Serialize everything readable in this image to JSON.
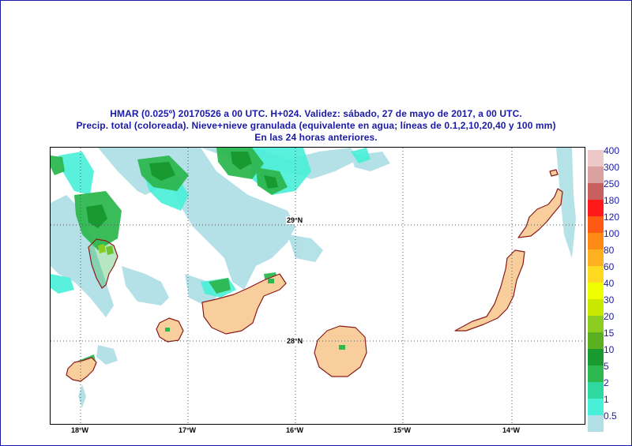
{
  "header": {
    "line1": "HMAR (0.025º) 20170526  a 00 UTC.  H+024. Validez: sábado, 27 de mayo de 2017,  a  00 UTC.",
    "line2": "Precip. total (coloreada). Nieve+nieve granulada (equivalente en agua; líneas de 0.1,2,10,20,40 y 100 mm)",
    "line3": "En las 24 horas anteriores."
  },
  "map": {
    "lat_labels": [
      "29°N",
      "28°N"
    ],
    "lon_labels": [
      "18°W",
      "17°W",
      "16°W",
      "15°W",
      "14°W"
    ],
    "colors": {
      "land": "#f8cf9c",
      "coast": "#8b1a1a",
      "grid": "#555555"
    }
  },
  "legend": {
    "items": [
      {
        "label": "400",
        "color": "#ecc8c8"
      },
      {
        "label": "300",
        "color": "#dba0a0"
      },
      {
        "label": "250",
        "color": "#c86060"
      },
      {
        "label": "180",
        "color": "#ff1a1a"
      },
      {
        "label": "120",
        "color": "#ff5a14"
      },
      {
        "label": "100",
        "color": "#ff8a14"
      },
      {
        "label": "80",
        "color": "#ffb020"
      },
      {
        "label": "60",
        "color": "#ffd820"
      },
      {
        "label": "40",
        "color": "#f0ff00"
      },
      {
        "label": "30",
        "color": "#c8e800"
      },
      {
        "label": "20",
        "color": "#8ccc20"
      },
      {
        "label": "15",
        "color": "#5ab020"
      },
      {
        "label": "10",
        "color": "#189a30"
      },
      {
        "label": "5",
        "color": "#2eb850"
      },
      {
        "label": "2",
        "color": "#2ed8a0"
      },
      {
        "label": "1",
        "color": "#48f0d8"
      },
      {
        "label": "0.5",
        "color": "#b0e0e6"
      }
    ]
  }
}
